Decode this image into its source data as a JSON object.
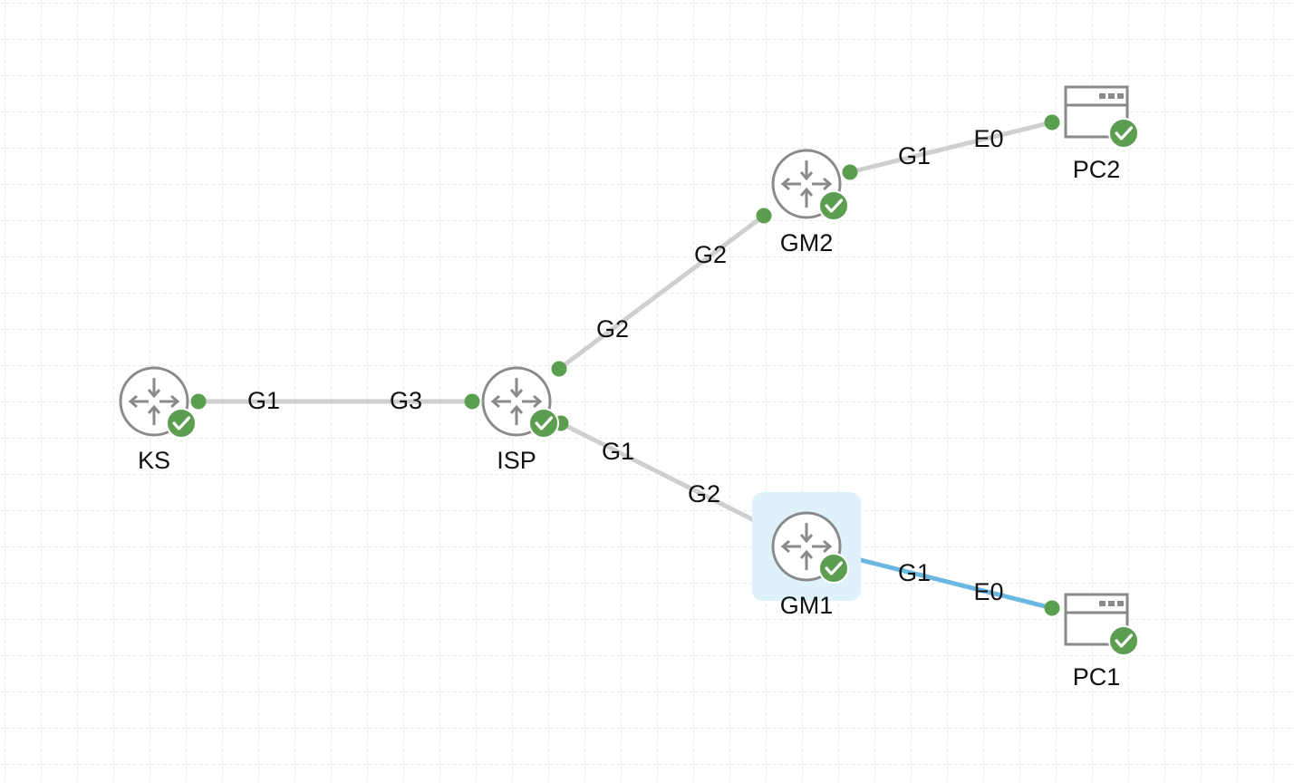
{
  "colors": {
    "grid": "#e3e3e3",
    "link": "#cfcfcf",
    "link_selected": "#6ab7e0",
    "port_dot": "#5c9e4f",
    "status_ok": "#5c9e4f",
    "icon_stroke": "#8a8a8a",
    "selection_bg": "#dff1fa"
  },
  "nodes": [
    {
      "id": "ks",
      "label": "KS",
      "type": "router",
      "status": "ok",
      "icon": "router-icon",
      "selected": false
    },
    {
      "id": "isp",
      "label": "ISP",
      "type": "router",
      "status": "ok",
      "icon": "router-icon",
      "selected": false
    },
    {
      "id": "gm2",
      "label": "GM2",
      "type": "router",
      "status": "ok",
      "icon": "router-icon",
      "selected": false
    },
    {
      "id": "gm1",
      "label": "GM1",
      "type": "router",
      "status": "ok",
      "icon": "router-icon",
      "selected": true
    },
    {
      "id": "pc2",
      "label": "PC2",
      "type": "pc",
      "status": "ok",
      "icon": "pc-window-icon",
      "selected": false
    },
    {
      "id": "pc1",
      "label": "PC1",
      "type": "pc",
      "status": "ok",
      "icon": "pc-window-icon",
      "selected": false
    }
  ],
  "links": [
    {
      "id": "ks-isp",
      "from": "ks",
      "from_port": "G1",
      "to": "isp",
      "to_port": "G3",
      "selected": false
    },
    {
      "id": "isp-gm2",
      "from": "isp",
      "from_port": "G2",
      "to": "gm2",
      "to_port": "G2",
      "selected": false
    },
    {
      "id": "isp-gm1",
      "from": "isp",
      "from_port": "G1",
      "to": "gm1",
      "to_port": "G2",
      "selected": false
    },
    {
      "id": "gm2-pc2",
      "from": "gm2",
      "from_port": "G1",
      "to": "pc2",
      "to_port": "E0",
      "selected": false
    },
    {
      "id": "gm1-pc1",
      "from": "gm1",
      "from_port": "G1",
      "to": "pc1",
      "to_port": "E0",
      "selected": true
    }
  ]
}
